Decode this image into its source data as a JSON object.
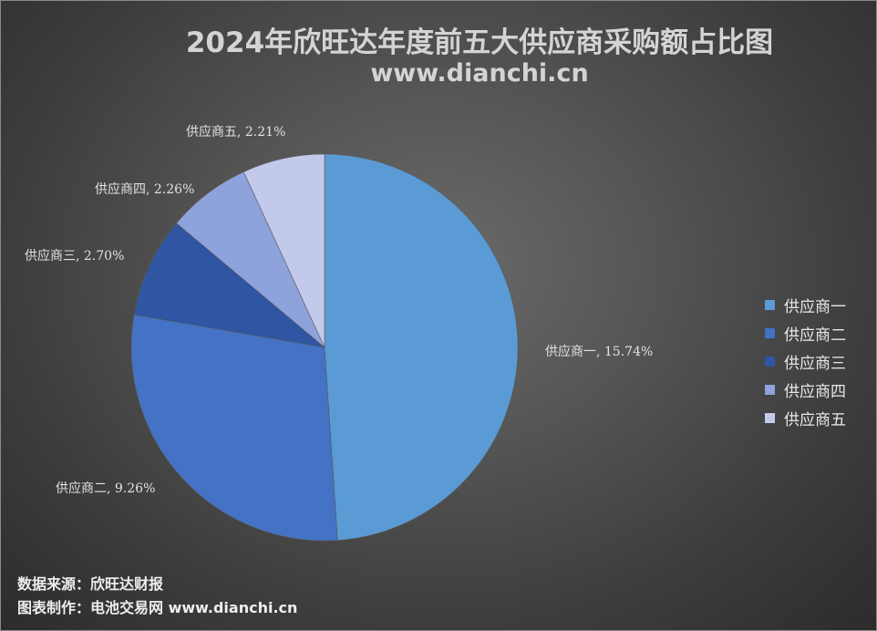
{
  "title": "2024年欣旺达年度前五大供应商采购额占比图",
  "subtitle": "www.dianchi.cn",
  "footer": {
    "source": "数据来源：欣旺达财报",
    "maker": "图表制作：电池交易网 www.dianchi.cn"
  },
  "chart_data": {
    "type": "pie",
    "title": "2024年欣旺达年度前五大供应商采购额占比图",
    "categories": [
      "供应商一",
      "供应商二",
      "供应商三",
      "供应商四",
      "供应商五"
    ],
    "values": [
      15.74,
      9.26,
      2.7,
      2.26,
      2.21
    ],
    "unit": "%",
    "data_labels": [
      "供应商一, 15.74%",
      "供应商二, 9.26%",
      "供应商三, 2.70%",
      "供应商四, 2.26%",
      "供应商五, 2.21%"
    ],
    "colors": [
      "#5b9bd5",
      "#4472c4",
      "#2f55a3",
      "#8ea2dc",
      "#c2c9ea"
    ],
    "start_angle": "12 o'clock",
    "direction": "clockwise",
    "legend_position": "right"
  },
  "legend": [
    {
      "label": "供应商一",
      "color": "#5b9bd5"
    },
    {
      "label": "供应商二",
      "color": "#4472c4"
    },
    {
      "label": "供应商三",
      "color": "#2f55a3"
    },
    {
      "label": "供应商四",
      "color": "#8ea2dc"
    },
    {
      "label": "供应商五",
      "color": "#c2c9ea"
    }
  ]
}
